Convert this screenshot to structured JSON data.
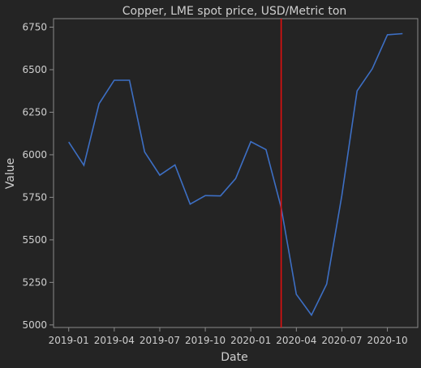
{
  "chart_data": {
    "type": "line",
    "title": "Copper, LME spot price, USD/Metric ton",
    "xlabel": "Date",
    "ylabel": "Value",
    "x": [
      "2019-01",
      "2019-02",
      "2019-03",
      "2019-04",
      "2019-05",
      "2019-06",
      "2019-07",
      "2019-08",
      "2019-09",
      "2019-10",
      "2019-11",
      "2019-12",
      "2020-01",
      "2020-02",
      "2020-03",
      "2020-04",
      "2020-05",
      "2020-06",
      "2020-07",
      "2020-08",
      "2020-09",
      "2020-10",
      "2020-11"
    ],
    "series": [
      {
        "values": [
          6075,
          5938,
          6300,
          6438,
          6438,
          6017,
          5880,
          5940,
          5710,
          5760,
          5758,
          5860,
          6077,
          6030,
          5690,
          5180,
          5058,
          5240,
          5760,
          6375,
          6505,
          6705,
          6712
        ]
      }
    ],
    "xticks": [
      "2019-01",
      "2019-04",
      "2019-07",
      "2019-10",
      "2020-01",
      "2020-04",
      "2020-07",
      "2020-10"
    ],
    "yticks": [
      5000,
      5250,
      5500,
      5750,
      6000,
      6250,
      6500,
      6750
    ],
    "ylim": [
      4985,
      6800
    ],
    "vline": {
      "x": "2020-03",
      "color": "#e01010"
    },
    "grid": false,
    "colors": {
      "background": "#242424",
      "plot_background": "#242424",
      "line": "#3d6fc4",
      "axes": "#8a8a8a",
      "text": "#cfcfcf"
    }
  }
}
